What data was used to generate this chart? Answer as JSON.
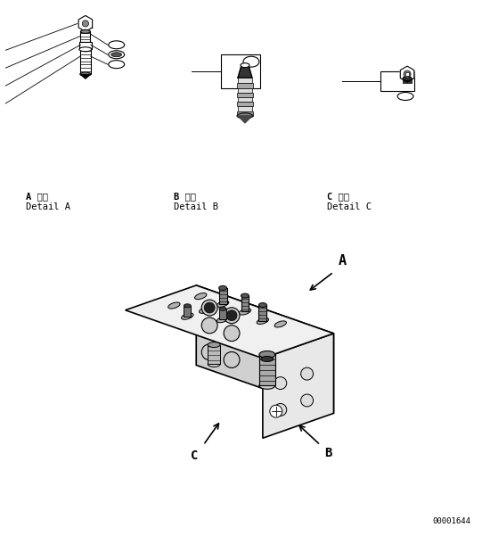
{
  "bg_color": "#ffffff",
  "text_color": "#000000",
  "label_A_line1": "A 詳細",
  "label_A_line2": "Detail A",
  "label_B_line1": "B 詳細",
  "label_B_line2": "Detail B",
  "label_C_line1": "C 詳細",
  "label_C_line2": "Detail C",
  "code": "00001644"
}
